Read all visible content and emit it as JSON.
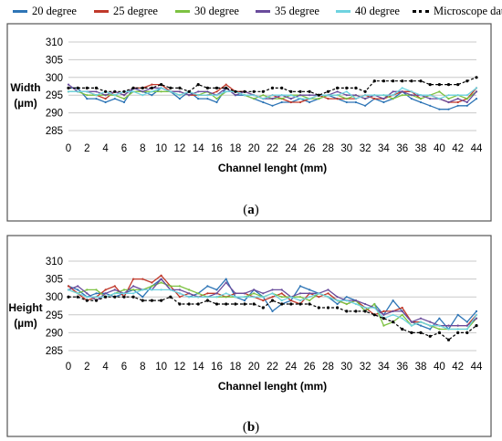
{
  "legend": [
    {
      "name": "20 degree",
      "color": "#2e75b6",
      "dash": "solid"
    },
    {
      "name": "25 degree",
      "color": "#c0392b",
      "dash": "solid"
    },
    {
      "name": "30 degree",
      "color": "#7dc242",
      "dash": "solid"
    },
    {
      "name": "35 degree",
      "color": "#6a4c9c",
      "dash": "solid"
    },
    {
      "name": "40 degree",
      "color": "#6fd3e0",
      "dash": "solid"
    },
    {
      "name": "Microscope data",
      "color": "#000000",
      "dash": "dotted"
    }
  ],
  "chart_data": [
    {
      "type": "line",
      "panel_label": "a",
      "xlabel": "Channel  lenght (mm)",
      "ylabel": [
        "Width",
        "(µm)"
      ],
      "ylim": [
        285,
        310
      ],
      "yticks": [
        285,
        290,
        295,
        300,
        305,
        310
      ],
      "xlim": [
        0,
        44
      ],
      "xticks": [
        0,
        2,
        4,
        6,
        8,
        10,
        12,
        14,
        16,
        18,
        20,
        22,
        24,
        26,
        28,
        30,
        32,
        34,
        36,
        38,
        40,
        42,
        44
      ],
      "grid": "horizontal",
      "x": [
        0,
        1,
        2,
        3,
        4,
        5,
        6,
        7,
        8,
        9,
        10,
        11,
        12,
        13,
        14,
        15,
        16,
        17,
        18,
        19,
        20,
        21,
        22,
        23,
        24,
        25,
        26,
        27,
        28,
        29,
        30,
        31,
        32,
        33,
        34,
        35,
        36,
        37,
        38,
        39,
        40,
        41,
        42,
        43,
        44
      ],
      "series": [
        {
          "name": "20 degree",
          "values": [
            297,
            297,
            294,
            294,
            293,
            294,
            293,
            297,
            296,
            295,
            297,
            296,
            294,
            296,
            294,
            294,
            293,
            297,
            295,
            295,
            294,
            293,
            292,
            293,
            293,
            294,
            293,
            294,
            295,
            294,
            293,
            293,
            292,
            294,
            293,
            294,
            296,
            294,
            293,
            292,
            291,
            291,
            292,
            292,
            294
          ]
        },
        {
          "name": "25 degree",
          "values": [
            296,
            296,
            296,
            295,
            294,
            296,
            295,
            297,
            297,
            298,
            298,
            296,
            296,
            295,
            295,
            295,
            296,
            298,
            296,
            296,
            295,
            294,
            295,
            294,
            293,
            293,
            294,
            295,
            294,
            294,
            294,
            294,
            295,
            294,
            294,
            295,
            296,
            296,
            294,
            295,
            294,
            293,
            293,
            294,
            297
          ]
        },
        {
          "name": "30 degree",
          "values": [
            296,
            296,
            295,
            295,
            295,
            295,
            294,
            296,
            296,
            296,
            296,
            296,
            295,
            296,
            295,
            296,
            294,
            296,
            296,
            295,
            294,
            295,
            294,
            294,
            295,
            295,
            294,
            294,
            295,
            295,
            294,
            295,
            294,
            295,
            295,
            294,
            295,
            295,
            294,
            295,
            296,
            294,
            295,
            294,
            296
          ]
        },
        {
          "name": "35 degree",
          "values": [
            298,
            296,
            296,
            296,
            295,
            296,
            295,
            297,
            296,
            297,
            297,
            296,
            296,
            295,
            296,
            296,
            295,
            297,
            295,
            296,
            295,
            294,
            294,
            295,
            294,
            295,
            295,
            295,
            295,
            296,
            295,
            295,
            294,
            295,
            294,
            296,
            296,
            295,
            295,
            294,
            294,
            293,
            294,
            293,
            296
          ]
        },
        {
          "name": "40 degree",
          "values": [
            296,
            296,
            296,
            295,
            296,
            295,
            296,
            296,
            295,
            296,
            297,
            296,
            295,
            296,
            295,
            295,
            295,
            296,
            296,
            295,
            295,
            294,
            295,
            295,
            295,
            294,
            294,
            295,
            295,
            295,
            296,
            294,
            295,
            295,
            295,
            295,
            297,
            296,
            295,
            295,
            294,
            295,
            295,
            295,
            297
          ]
        },
        {
          "name": "Microscope data",
          "values": [
            297,
            297,
            297,
            297,
            296,
            296,
            296,
            297,
            297,
            297,
            298,
            297,
            297,
            296,
            298,
            297,
            297,
            297,
            296,
            296,
            296,
            296,
            297,
            297,
            296,
            296,
            296,
            295,
            296,
            297,
            297,
            297,
            296,
            299,
            299,
            299,
            299,
            299,
            299,
            298,
            298,
            298,
            298,
            299,
            300
          ]
        }
      ]
    },
    {
      "type": "line",
      "panel_label": "b",
      "xlabel": "Channel  lenght (mm)",
      "ylabel": [
        "Height",
        "(µm)"
      ],
      "ylim": [
        285,
        310
      ],
      "yticks": [
        285,
        290,
        295,
        300,
        305,
        310
      ],
      "xlim": [
        0,
        44
      ],
      "xticks": [
        0,
        2,
        4,
        6,
        8,
        10,
        12,
        14,
        16,
        18,
        20,
        22,
        24,
        26,
        28,
        30,
        32,
        34,
        36,
        38,
        40,
        42,
        44
      ],
      "grid": "horizontal",
      "x": [
        0,
        1,
        2,
        3,
        4,
        5,
        6,
        7,
        8,
        9,
        10,
        11,
        12,
        13,
        14,
        15,
        16,
        17,
        18,
        19,
        20,
        21,
        22,
        23,
        24,
        25,
        26,
        27,
        28,
        29,
        30,
        31,
        32,
        33,
        34,
        35,
        36,
        37,
        38,
        39,
        40,
        41,
        42,
        43,
        44
      ],
      "series": [
        {
          "name": "20 degree",
          "values": [
            303,
            302,
            300,
            301,
            301,
            300,
            301,
            302,
            300,
            303,
            305,
            302,
            301,
            300,
            301,
            303,
            302,
            305,
            300,
            299,
            302,
            300,
            296,
            298,
            299,
            303,
            302,
            301,
            300,
            298,
            300,
            299,
            296,
            298,
            295,
            299,
            296,
            293,
            292,
            291,
            294,
            291,
            295,
            293,
            296
          ]
        },
        {
          "name": "25 degree",
          "values": [
            303,
            301,
            299,
            300,
            302,
            303,
            300,
            305,
            305,
            304,
            306,
            303,
            300,
            301,
            300,
            301,
            301,
            300,
            301,
            301,
            300,
            299,
            300,
            301,
            299,
            298,
            301,
            300,
            301,
            299,
            298,
            299,
            297,
            295,
            296,
            296,
            297,
            293,
            293,
            292,
            292,
            292,
            292,
            292,
            295
          ]
        },
        {
          "name": "30 degree",
          "values": [
            302,
            301,
            302,
            302,
            300,
            301,
            302,
            302,
            302,
            303,
            304,
            303,
            303,
            302,
            301,
            300,
            300,
            300,
            300,
            300,
            301,
            300,
            301,
            300,
            300,
            300,
            299,
            301,
            300,
            299,
            298,
            299,
            296,
            298,
            292,
            293,
            295,
            292,
            293,
            292,
            291,
            291,
            291,
            291,
            294
          ]
        },
        {
          "name": "35 degree",
          "values": [
            302,
            303,
            301,
            299,
            301,
            302,
            301,
            303,
            302,
            302,
            305,
            302,
            302,
            301,
            300,
            300,
            301,
            304,
            301,
            301,
            302,
            301,
            302,
            302,
            300,
            301,
            301,
            301,
            302,
            300,
            299,
            299,
            298,
            297,
            295,
            296,
            296,
            293,
            294,
            293,
            292,
            292,
            292,
            292,
            294
          ]
        },
        {
          "name": "40 degree",
          "values": [
            302,
            301,
            300,
            300,
            300,
            301,
            301,
            301,
            302,
            302,
            302,
            302,
            301,
            300,
            300,
            300,
            300,
            301,
            300,
            300,
            300,
            300,
            301,
            299,
            300,
            299,
            300,
            301,
            300,
            299,
            299,
            298,
            297,
            297,
            294,
            295,
            294,
            292,
            293,
            292,
            292,
            291,
            291,
            291,
            295
          ]
        },
        {
          "name": "Microscope data",
          "values": [
            300,
            300,
            299,
            299,
            300,
            300,
            300,
            300,
            299,
            299,
            299,
            300,
            298,
            298,
            298,
            299,
            298,
            298,
            298,
            298,
            298,
            297,
            299,
            298,
            298,
            298,
            298,
            297,
            297,
            297,
            296,
            296,
            296,
            295,
            294,
            293,
            291,
            290,
            290,
            289,
            290,
            288,
            290,
            290,
            292
          ]
        }
      ]
    }
  ]
}
